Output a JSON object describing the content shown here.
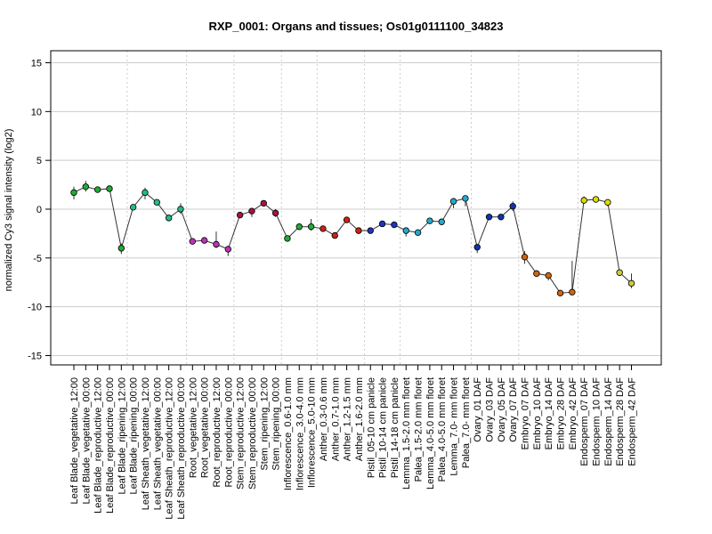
{
  "chart_data": {
    "type": "line",
    "title": "RXP_0001: Organs and tissues; Os01g0111100_34823",
    "xlabel": "",
    "ylabel": "normalized Cy3 signal intensity (log2)",
    "ylim": [
      -15,
      15
    ],
    "yticks": [
      -15,
      -10,
      -5,
      0,
      5,
      10,
      15
    ],
    "grid": true,
    "categories": [
      "Leaf Blade_vegetative_12:00",
      "Leaf Blade_vegetative_00:00",
      "Leaf Blade_reproductive_12:00",
      "Leaf Blade_reproductive_00:00",
      "Leaf Blade_ripening_12:00",
      "Leaf Blade_ripening_00:00",
      "Leaf Sheath_vegetative_12:00",
      "Leaf Sheath_vegetative_00:00",
      "Leaf Sheath_reproductive_12:00",
      "Leaf Sheath_reproductive_00:00",
      "Root_vegetative_12:00",
      "Root_vegetative_00:00",
      "Root_reproductive_12:00",
      "Root_reproductive_00:00",
      "Stem_reproductive_12:00",
      "Stem_reproductive_00:00",
      "Stem_ripening_12:00",
      "Stem_ripening_00:00",
      "Inflorescence_0.6-1.0 mm",
      "Inflorescence_3.0-4.0 mm",
      "Inflorescence_5.0-10 mm",
      "Anther_0.3-0.6 mm",
      "Anther_0.7-1.0 mm",
      "Anther_1.2-1.5 mm",
      "Anther_1.6-2.0 mm",
      "Pistil_05-10 cm panicle",
      "Pistil_10-14 cm panicle",
      "Pistil_14-18 cm panicle",
      "Lemma_1.5-2.0 mm floret",
      "Palea_1.5-2.0 mm floret",
      "Lemma_4.0-5.0 mm floret",
      "Palea_4.0-5.0 mm floret",
      "Lemma_7.0- mm floret",
      "Palea_7.0- mm floret",
      "Ovary_01 DAF",
      "Ovary_03 DAF",
      "Ovary_05 DAF",
      "Ovary_07 DAF",
      "Embryo_07 DAF",
      "Embryo_10 DAF",
      "Embryo_14 DAF",
      "Embryo_28 DAF",
      "Embryo_42 DAF",
      "Endosperm_07 DAF",
      "Endosperm_10 DAF",
      "Endosperm_14 DAF",
      "Endosperm_28 DAF",
      "Endosperm_42 DAF"
    ],
    "values": [
      1.7,
      2.3,
      2.0,
      2.1,
      -4.0,
      0.2,
      1.7,
      0.7,
      -0.9,
      0.0,
      -3.3,
      -3.2,
      -3.6,
      -4.1,
      -0.6,
      -0.2,
      0.6,
      -0.4,
      -3.0,
      -1.8,
      -1.8,
      -2.0,
      -2.7,
      -1.1,
      -2.2,
      -2.2,
      -1.5,
      -1.6,
      -2.2,
      -2.4,
      -1.2,
      -1.3,
      0.8,
      1.1,
      -3.9,
      -0.8,
      -0.8,
      0.3,
      -4.9,
      -6.6,
      -6.8,
      -8.6,
      -8.5,
      0.9,
      1.0,
      0.7,
      -6.5,
      -7.6
    ],
    "error_low": [
      1.0,
      1.8,
      2.0,
      2.1,
      -4.6,
      0.2,
      1.0,
      0.7,
      -0.9,
      -0.5,
      -3.3,
      -3.2,
      -4.0,
      -4.8,
      -0.6,
      -0.8,
      0.6,
      -0.8,
      -3.0,
      -1.8,
      -2.2,
      -2.0,
      -3.0,
      -1.1,
      -2.2,
      -2.2,
      -1.5,
      -1.6,
      -2.8,
      -2.4,
      -1.2,
      -1.3,
      0.1,
      0.3,
      -4.5,
      -0.8,
      -0.8,
      -0.2,
      -5.6,
      -6.6,
      -7.3,
      -8.6,
      -8.5,
      0.6,
      1.0,
      0.3,
      -6.5,
      -8.1
    ],
    "error_high": [
      2.3,
      2.9,
      2.0,
      2.1,
      -3.5,
      0.5,
      2.2,
      0.7,
      -0.9,
      0.6,
      -3.3,
      -3.2,
      -2.3,
      -3.8,
      -0.6,
      -0.2,
      0.6,
      0.0,
      -2.7,
      -1.8,
      -1.0,
      -2.0,
      -2.4,
      -1.1,
      -2.2,
      -2.2,
      -1.5,
      -1.6,
      -2.2,
      -2.4,
      -1.2,
      -1.3,
      0.9,
      1.2,
      -3.9,
      -0.8,
      -0.8,
      0.8,
      -4.3,
      -6.6,
      -6.8,
      -8.6,
      -5.3,
      1.3,
      1.0,
      0.7,
      -6.5,
      -6.6
    ],
    "colors": [
      "#22aa33",
      "#22aa33",
      "#22aa33",
      "#22aa33",
      "#22aa33",
      "#22bb88",
      "#22bb88",
      "#22bb88",
      "#22bb88",
      "#22bb88",
      "#bb33bb",
      "#bb33bb",
      "#bb33bb",
      "#bb33bb",
      "#aa1144",
      "#aa1144",
      "#aa1144",
      "#aa1144",
      "#22aa33",
      "#22aa33",
      "#22aa33",
      "#cc2211",
      "#cc2211",
      "#cc2211",
      "#cc2211",
      "#2233bb",
      "#2233bb",
      "#2233bb",
      "#22aacc",
      "#22aacc",
      "#22aacc",
      "#22aacc",
      "#22aacc",
      "#22aacc",
      "#1133aa",
      "#1133aa",
      "#1133aa",
      "#1133aa",
      "#cc6611",
      "#cc6611",
      "#cc6611",
      "#cc6611",
      "#cc6611",
      "#dddd00",
      "#dddd00",
      "#dddd00",
      "#cccc33",
      "#cccc33"
    ],
    "group_boundaries_after": [
      5,
      10,
      14,
      18,
      21,
      25,
      28,
      34,
      38,
      43
    ]
  }
}
